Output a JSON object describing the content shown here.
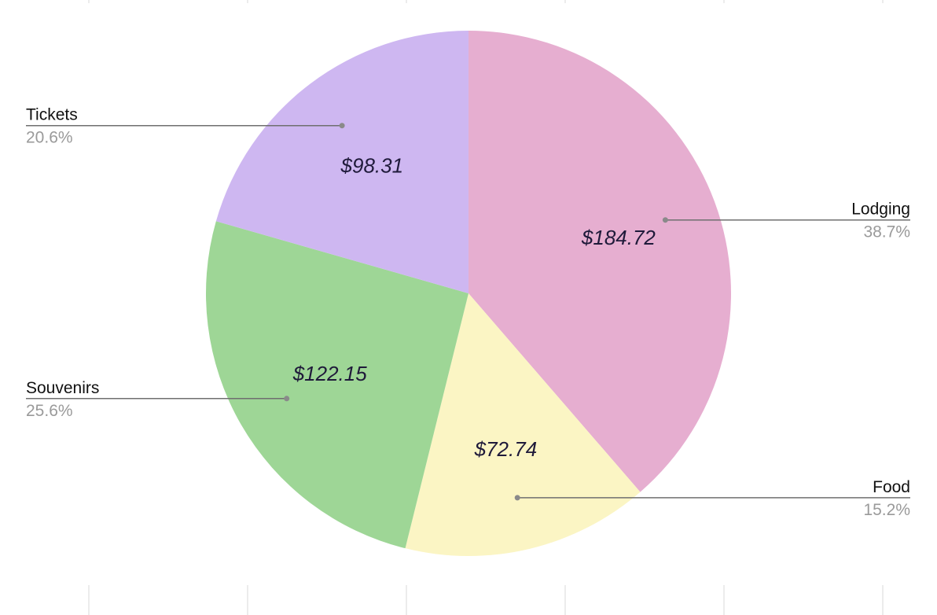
{
  "chart_data": {
    "type": "pie",
    "categories": [
      "Lodging",
      "Food",
      "Souvenirs",
      "Tickets"
    ],
    "values": [
      184.72,
      72.74,
      122.15,
      98.31
    ],
    "value_labels": [
      "$184.72",
      "$72.74",
      "$122.15",
      "$98.31"
    ],
    "percent_labels": [
      "38.7%",
      "15.2%",
      "25.6%",
      "20.6%"
    ],
    "colors": [
      "#e6aed0",
      "#fbf5c4",
      "#9ed696",
      "#ceb7f1"
    ],
    "start_angle_deg": 0,
    "direction": "clockwise",
    "title": "",
    "legend": "callouts"
  }
}
